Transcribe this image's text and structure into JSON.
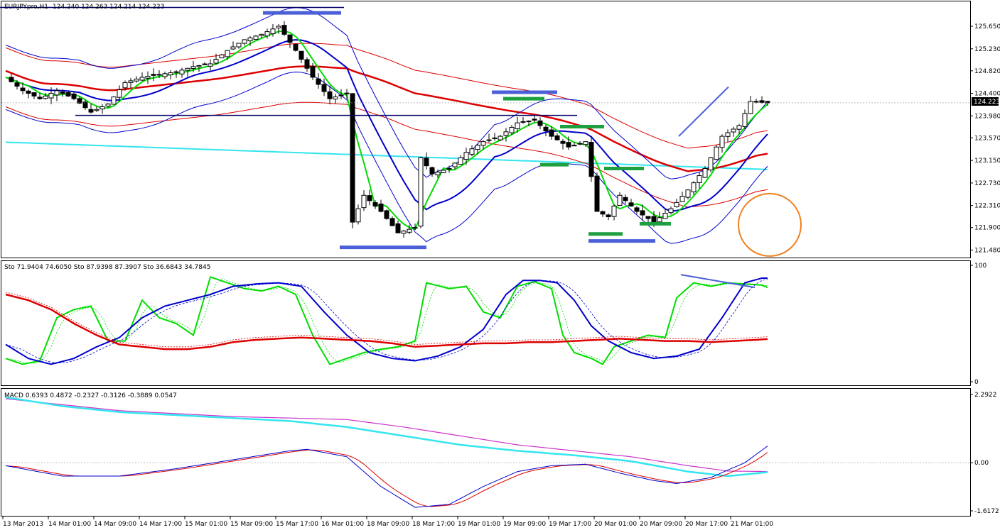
{
  "window": {
    "symbol_header": "EURJPYpro,H1",
    "ohlc_header": "124.240 124.263 124.214 124.223"
  },
  "price_panel": {
    "current_price": "124.223",
    "current_price_value": 124.223,
    "ylim": [
      121.38,
      126.06
    ],
    "ticks": [
      {
        "label": "125.650",
        "value": 125.65
      },
      {
        "label": "125.230",
        "value": 125.23
      },
      {
        "label": "124.820",
        "value": 124.82
      },
      {
        "label": "124.400",
        "value": 124.4
      },
      {
        "label": "123.980",
        "value": 123.98
      },
      {
        "label": "123.570",
        "value": 123.57
      },
      {
        "label": "123.150",
        "value": 123.15
      },
      {
        "label": "122.730",
        "value": 122.73
      },
      {
        "label": "122.310",
        "value": 122.31
      },
      {
        "label": "121.900",
        "value": 121.9
      },
      {
        "label": "121.480",
        "value": 121.48
      }
    ]
  },
  "stoch_panel": {
    "header": "Sto 71.9404 74.6050  Sto 87.9398 87.3907  Sto 36.6843 34.7845",
    "ylim": [
      0,
      100
    ],
    "ticks": [
      {
        "label": "100",
        "value": 100
      },
      {
        "label": "0",
        "value": 0
      }
    ]
  },
  "macd_panel": {
    "header": "MACD 0.6393 0.4872 -0.2327 -0.3126 -0.3889 0.0547",
    "ylim": [
      -1.6172,
      2.2922
    ],
    "ticks": [
      {
        "label": "2.2922",
        "value": 2.2922
      },
      {
        "label": "0.00",
        "value": 0
      },
      {
        "label": "-1.6172",
        "value": -1.6172
      }
    ]
  },
  "time_axis": [
    "13 Mar 2013",
    "14 Mar 01:00",
    "14 Mar 09:00",
    "14 Mar 17:00",
    "15 Mar 01:00",
    "15 Mar 09:00",
    "15 Mar 17:00",
    "16 Mar 01:00",
    "18 Mar 09:00",
    "18 Mar 17:00",
    "19 Mar 01:00",
    "19 Mar 09:00",
    "19 Mar 17:00",
    "20 Mar 01:00",
    "20 Mar 09:00",
    "20 Mar 17:00",
    "21 Mar 01:00"
  ],
  "colors": {
    "bull_candle": "#ffffff",
    "bear_candle": "#000000",
    "fast_ma": "#00dd00",
    "mid_ma": "#0000cc",
    "slow_ma": "#dd0000",
    "long_ma": "#33e5f0",
    "support_marks": "#1fa040",
    "resistance_marks": "#4a5fd8",
    "circle": "#f08020",
    "macd_signal": "#cc33cc"
  },
  "chart_data": {
    "type": "candlestick",
    "x": [
      "13 Mar 2013",
      "14 Mar 01:00",
      "14 Mar 09:00",
      "14 Mar 17:00",
      "15 Mar 01:00",
      "15 Mar 09:00",
      "15 Mar 17:00",
      "16 Mar 01:00",
      "18 Mar 09:00",
      "18 Mar 17:00",
      "19 Mar 01:00",
      "19 Mar 09:00",
      "19 Mar 17:00",
      "20 Mar 01:00",
      "20 Mar 09:00",
      "20 Mar 17:00",
      "21 Mar 01:00"
    ],
    "close_path": [
      [
        0,
        124.7
      ],
      [
        3,
        124.45
      ],
      [
        6,
        124.3
      ],
      [
        9,
        124.45
      ],
      [
        12,
        124.3
      ],
      [
        15,
        124.05
      ],
      [
        18,
        124.2
      ],
      [
        21,
        124.6
      ],
      [
        24,
        124.7
      ],
      [
        27,
        124.75
      ],
      [
        30,
        124.8
      ],
      [
        33,
        124.9
      ],
      [
        36,
        124.95
      ],
      [
        39,
        125.2
      ],
      [
        42,
        125.4
      ],
      [
        45,
        125.5
      ],
      [
        48,
        125.65
      ],
      [
        51,
        125.2
      ],
      [
        54,
        124.7
      ],
      [
        57,
        124.3
      ],
      [
        60,
        124.4
      ],
      [
        61,
        122.0
      ],
      [
        63,
        122.5
      ],
      [
        66,
        122.2
      ],
      [
        69,
        121.8
      ],
      [
        72,
        121.9
      ],
      [
        73,
        123.2
      ],
      [
        75,
        122.9
      ],
      [
        78,
        123.0
      ],
      [
        81,
        123.3
      ],
      [
        84,
        123.5
      ],
      [
        87,
        123.6
      ],
      [
        90,
        123.85
      ],
      [
        93,
        123.9
      ],
      [
        96,
        123.6
      ],
      [
        99,
        123.4
      ],
      [
        102,
        123.5
      ],
      [
        104,
        122.2
      ],
      [
        106,
        122.1
      ],
      [
        108,
        122.5
      ],
      [
        111,
        122.2
      ],
      [
        114,
        122.0
      ],
      [
        117,
        122.25
      ],
      [
        120,
        122.6
      ],
      [
        123,
        123.0
      ],
      [
        126,
        123.6
      ],
      [
        129,
        123.8
      ],
      [
        131,
        124.25
      ],
      [
        134,
        124.223
      ]
    ],
    "stochastic_fast_path": [
      [
        0,
        20
      ],
      [
        3,
        15
      ],
      [
        6,
        18
      ],
      [
        9,
        55
      ],
      [
        12,
        62
      ],
      [
        15,
        65
      ],
      [
        18,
        35
      ],
      [
        21,
        35
      ],
      [
        24,
        70
      ],
      [
        27,
        55
      ],
      [
        30,
        50
      ],
      [
        33,
        40
      ],
      [
        36,
        90
      ],
      [
        39,
        85
      ],
      [
        42,
        80
      ],
      [
        45,
        78
      ],
      [
        48,
        82
      ],
      [
        51,
        75
      ],
      [
        54,
        40
      ],
      [
        57,
        15
      ],
      [
        60,
        20
      ],
      [
        63,
        25
      ],
      [
        66,
        28
      ],
      [
        69,
        30
      ],
      [
        72,
        35
      ],
      [
        74,
        85
      ],
      [
        78,
        80
      ],
      [
        81,
        82
      ],
      [
        84,
        60
      ],
      [
        87,
        55
      ],
      [
        90,
        82
      ],
      [
        93,
        86
      ],
      [
        96,
        80
      ],
      [
        98,
        40
      ],
      [
        100,
        25
      ],
      [
        103,
        20
      ],
      [
        105,
        15
      ],
      [
        107,
        30
      ],
      [
        110,
        35
      ],
      [
        113,
        40
      ],
      [
        116,
        38
      ],
      [
        118,
        72
      ],
      [
        121,
        85
      ],
      [
        124,
        82
      ],
      [
        127,
        85
      ],
      [
        130,
        84
      ],
      [
        133,
        83
      ],
      [
        135,
        79
      ]
    ],
    "stochastic_mid_path": [
      [
        0,
        32
      ],
      [
        4,
        20
      ],
      [
        8,
        15
      ],
      [
        12,
        20
      ],
      [
        16,
        30
      ],
      [
        20,
        38
      ],
      [
        24,
        55
      ],
      [
        28,
        65
      ],
      [
        32,
        70
      ],
      [
        36,
        75
      ],
      [
        40,
        82
      ],
      [
        44,
        84
      ],
      [
        48,
        85
      ],
      [
        52,
        82
      ],
      [
        56,
        60
      ],
      [
        60,
        40
      ],
      [
        64,
        25
      ],
      [
        68,
        20
      ],
      [
        72,
        18
      ],
      [
        76,
        22
      ],
      [
        80,
        30
      ],
      [
        84,
        45
      ],
      [
        88,
        75
      ],
      [
        91,
        87
      ],
      [
        94,
        87
      ],
      [
        97,
        85
      ],
      [
        100,
        70
      ],
      [
        103,
        48
      ],
      [
        106,
        35
      ],
      [
        110,
        25
      ],
      [
        114,
        20
      ],
      [
        118,
        22
      ],
      [
        122,
        28
      ],
      [
        126,
        55
      ],
      [
        130,
        85
      ],
      [
        133,
        89
      ],
      [
        135,
        89
      ]
    ],
    "stochastic_slow_path": [
      [
        0,
        75
      ],
      [
        4,
        70
      ],
      [
        8,
        62
      ],
      [
        12,
        50
      ],
      [
        16,
        40
      ],
      [
        20,
        32
      ],
      [
        24,
        30
      ],
      [
        28,
        28
      ],
      [
        32,
        28
      ],
      [
        36,
        30
      ],
      [
        40,
        34
      ],
      [
        44,
        36
      ],
      [
        48,
        37
      ],
      [
        52,
        38
      ],
      [
        56,
        37
      ],
      [
        60,
        36
      ],
      [
        64,
        35
      ],
      [
        68,
        33
      ],
      [
        72,
        30
      ],
      [
        76,
        31
      ],
      [
        80,
        32
      ],
      [
        84,
        33
      ],
      [
        88,
        33
      ],
      [
        92,
        34
      ],
      [
        96,
        34
      ],
      [
        100,
        35
      ],
      [
        104,
        36
      ],
      [
        108,
        37
      ],
      [
        112,
        36
      ],
      [
        116,
        35
      ],
      [
        120,
        35
      ],
      [
        124,
        34
      ],
      [
        128,
        35
      ],
      [
        132,
        36
      ],
      [
        135,
        37
      ]
    ],
    "macd_long_path": [
      [
        0,
        2.2
      ],
      [
        10,
        1.9
      ],
      [
        20,
        1.7
      ],
      [
        30,
        1.6
      ],
      [
        40,
        1.5
      ],
      [
        50,
        1.4
      ],
      [
        60,
        1.2
      ],
      [
        70,
        0.9
      ],
      [
        80,
        0.6
      ],
      [
        90,
        0.4
      ],
      [
        100,
        0.25
      ],
      [
        110,
        0.05
      ],
      [
        120,
        -0.3
      ],
      [
        127,
        -0.45
      ],
      [
        135,
        -0.3
      ]
    ],
    "macd_signal_path": [
      [
        0,
        2.15
      ],
      [
        10,
        1.95
      ],
      [
        20,
        1.75
      ],
      [
        30,
        1.65
      ],
      [
        40,
        1.55
      ],
      [
        50,
        1.5
      ],
      [
        60,
        1.45
      ],
      [
        70,
        1.2
      ],
      [
        80,
        0.9
      ],
      [
        90,
        0.6
      ],
      [
        100,
        0.4
      ],
      [
        110,
        0.2
      ],
      [
        120,
        -0.1
      ],
      [
        127,
        -0.28
      ],
      [
        135,
        -0.3
      ]
    ],
    "macd_main_path": [
      [
        0,
        -0.1
      ],
      [
        10,
        -0.45
      ],
      [
        20,
        -0.45
      ],
      [
        30,
        -0.2
      ],
      [
        40,
        0.1
      ],
      [
        50,
        0.4
      ],
      [
        53,
        0.45
      ],
      [
        60,
        0.2
      ],
      [
        66,
        -0.8
      ],
      [
        72,
        -1.5
      ],
      [
        78,
        -1.4
      ],
      [
        84,
        -0.8
      ],
      [
        90,
        -0.3
      ],
      [
        96,
        -0.1
      ],
      [
        102,
        -0.05
      ],
      [
        108,
        -0.35
      ],
      [
        114,
        -0.6
      ],
      [
        118,
        -0.7
      ],
      [
        124,
        -0.5
      ],
      [
        130,
        0.0
      ],
      [
        135,
        0.7
      ]
    ]
  }
}
